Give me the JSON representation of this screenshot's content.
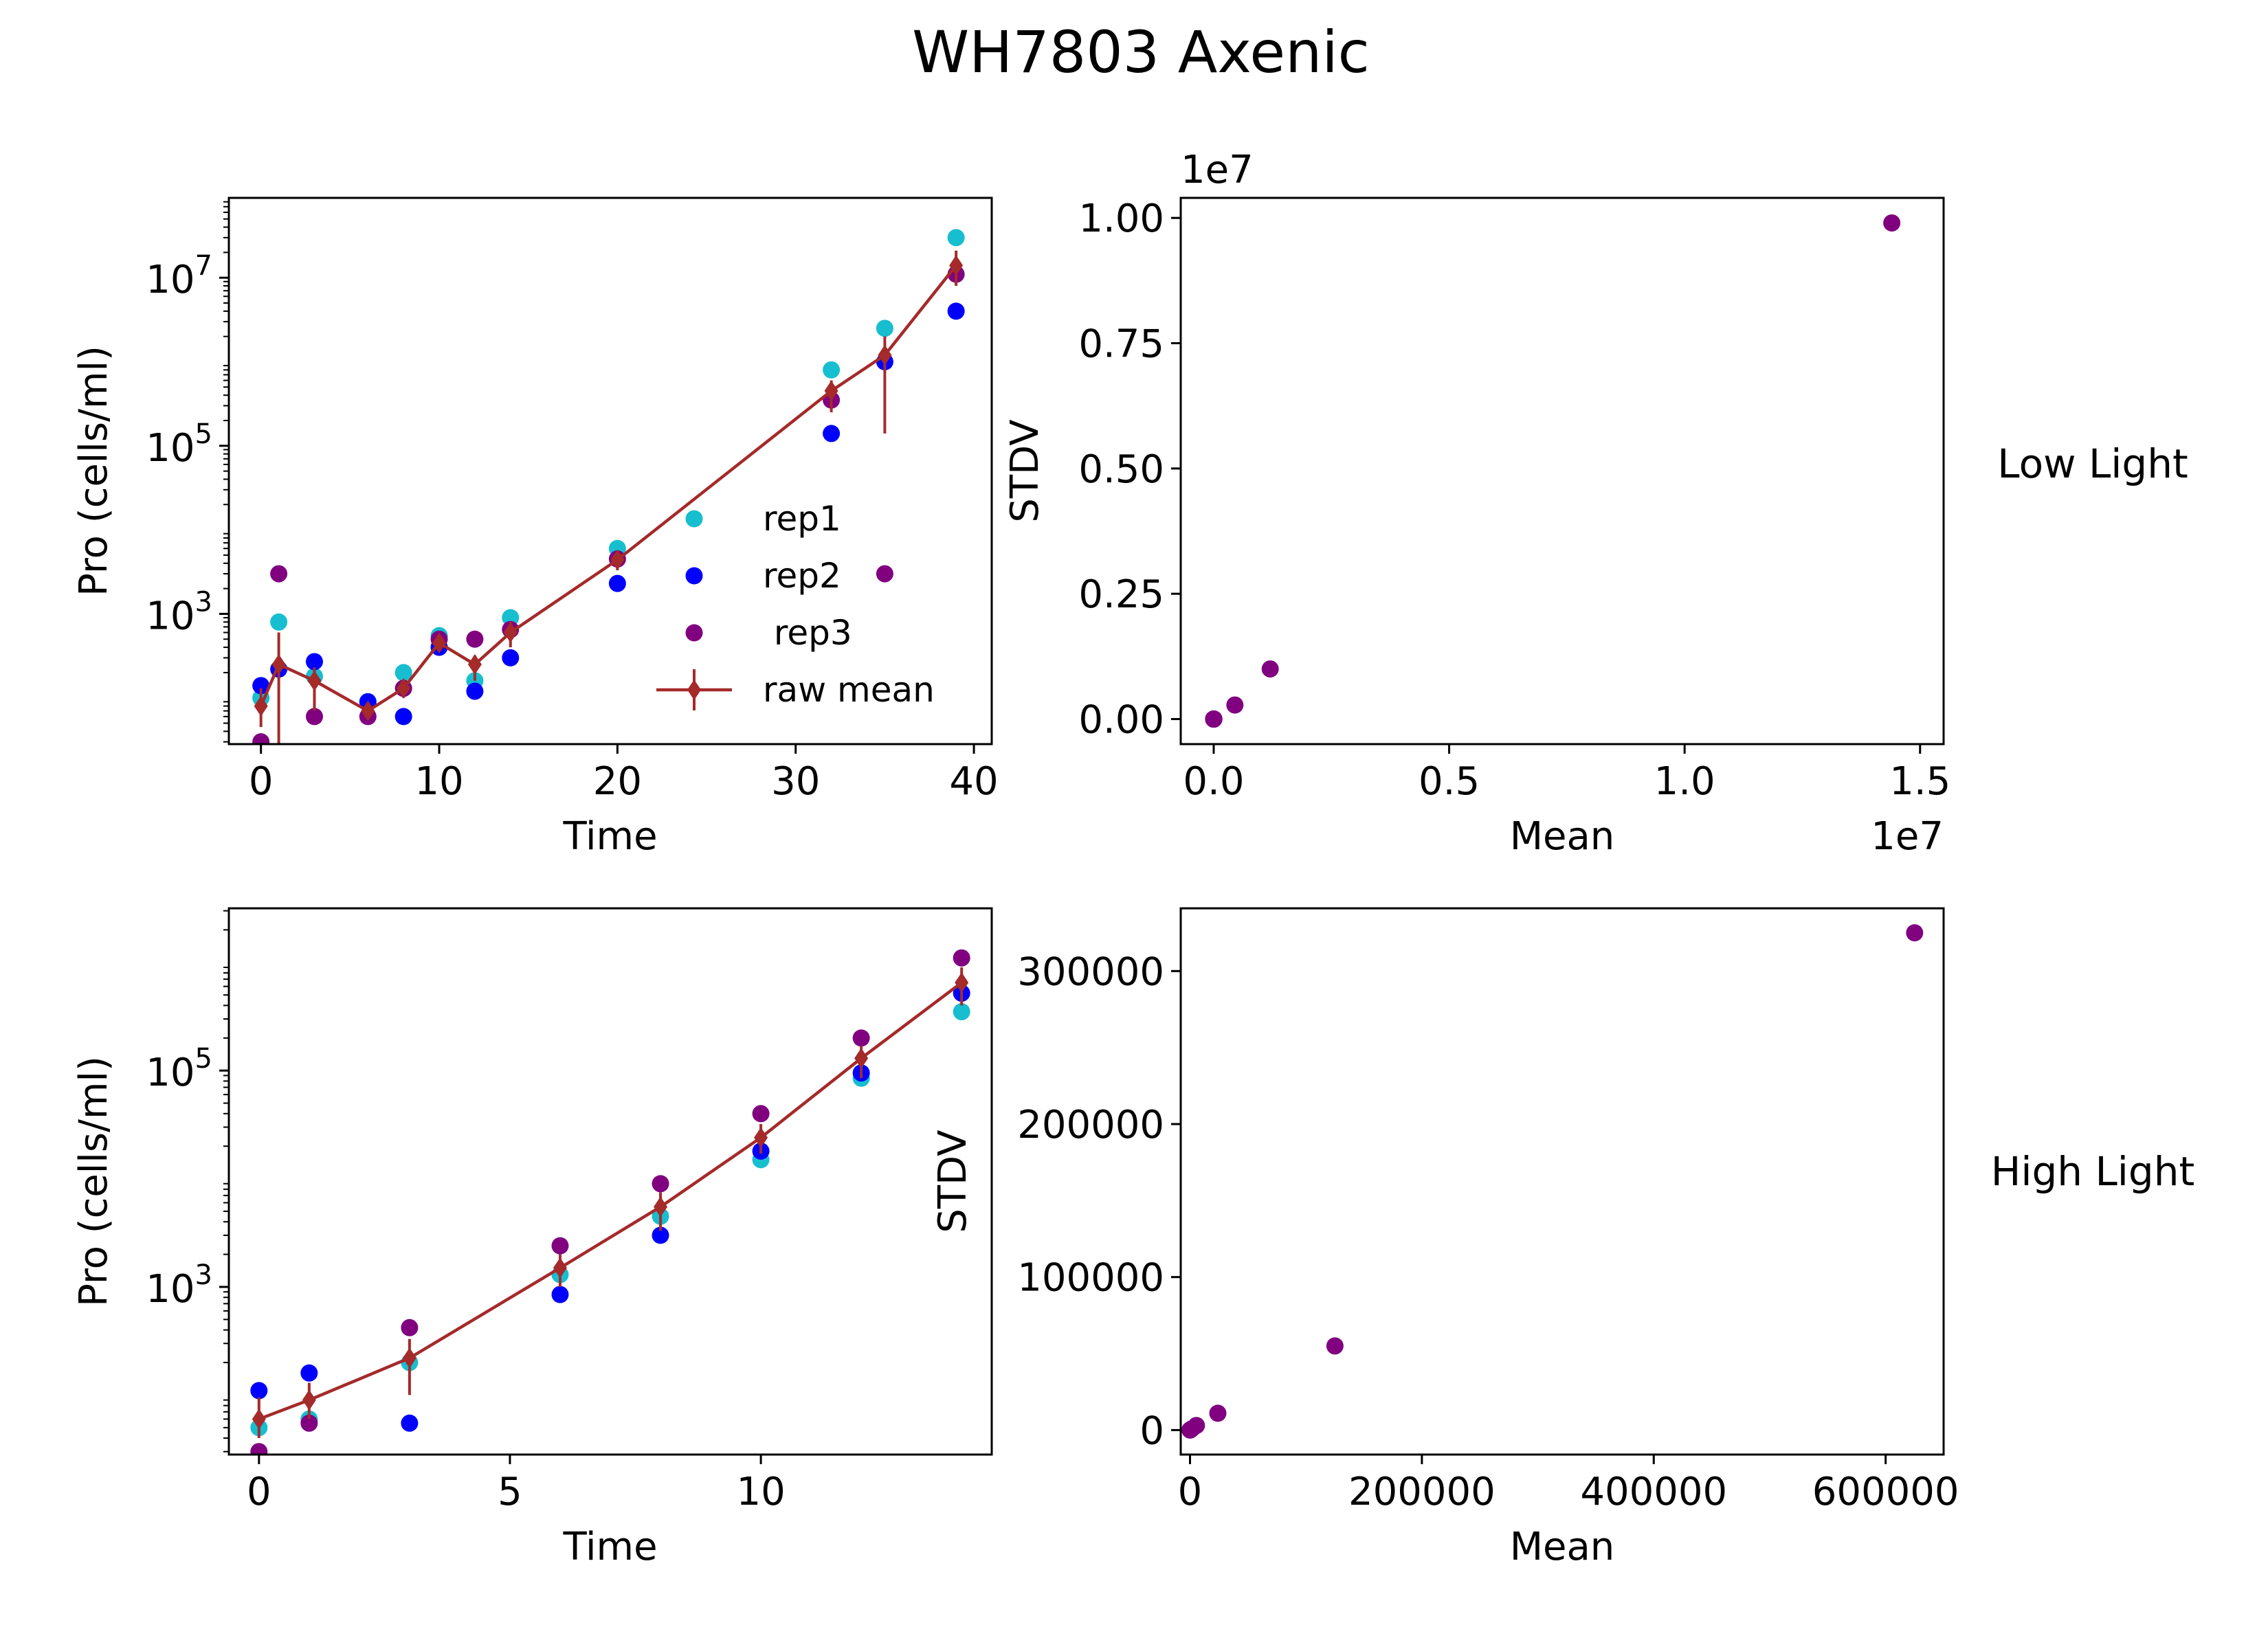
{
  "figure": {
    "title": "WH7803 Axenic",
    "row_labels": [
      "Low Light",
      "High Light"
    ]
  },
  "colors": {
    "rep1": "#17becf",
    "rep2": "#0000ff",
    "rep3": "#800080",
    "mean": "#a52a2a",
    "scatter": "#800080"
  },
  "chart_data": [
    {
      "id": "low-growth",
      "type": "scatter",
      "xlabel": "Time",
      "ylabel": "Pro (cells/ml)",
      "xlim": [
        -1.8,
        41
      ],
      "ylim_log10": [
        1.45,
        7.95
      ],
      "yscale": "log",
      "xticks": [
        0,
        10,
        20,
        30,
        40
      ],
      "yticks_log10": [
        3,
        5,
        7
      ],
      "legend": {
        "placement": "lower-right",
        "entries": [
          "rep1",
          "rep2",
          " rep3",
          "raw mean"
        ]
      },
      "series": [
        {
          "name": "rep1",
          "x": [
            0,
            1,
            3,
            6,
            8,
            10,
            12,
            14,
            20,
            32,
            35,
            39
          ],
          "y": [
            100,
            800,
            180,
            90,
            200,
            550,
            160,
            900,
            6000,
            800000,
            2500000,
            30000000
          ]
        },
        {
          "name": "rep2",
          "x": [
            0,
            1,
            3,
            6,
            8,
            10,
            12,
            14,
            20,
            32,
            35,
            39
          ],
          "y": [
            140,
            220,
            270,
            90,
            60,
            400,
            120,
            300,
            2300,
            140000,
            1000000,
            4000000
          ]
        },
        {
          "name": " rep3",
          "x": [
            0,
            1,
            3,
            6,
            8,
            10,
            12,
            14,
            20,
            32,
            35,
            39
          ],
          "y": [
            30,
            3000,
            60,
            60,
            130,
            500,
            500,
            650,
            4500,
            350000,
            3000,
            11000000
          ]
        },
        {
          "name": "raw mean",
          "x": [
            0,
            1,
            3,
            6,
            8,
            10,
            12,
            14,
            20,
            32,
            35,
            39
          ],
          "y": [
            80,
            250,
            160,
            70,
            130,
            450,
            250,
            600,
            4400,
            450000,
            1200000,
            14000000
          ],
          "err_low": [
            45,
            10,
            70,
            55,
            100,
            380,
            160,
            400,
            3300,
            250000,
            140000,
            8000000
          ],
          "err_high": [
            130,
            600,
            230,
            85,
            160,
            520,
            320,
            800,
            5500,
            600000,
            2000000,
            21000000
          ]
        }
      ]
    },
    {
      "id": "low-stdv",
      "type": "scatter",
      "xlabel": "Mean",
      "ylabel": "STDV",
      "x_offset_text": "1e7",
      "y_offset_text": "1e7",
      "xlim": [
        -0.07,
        1.55
      ],
      "ylim": [
        -0.05,
        1.04
      ],
      "xticks": [
        0.0,
        0.5,
        1.0,
        1.5
      ],
      "xtick_labels": [
        "0.0",
        "0.5",
        "1.0",
        "1.5"
      ],
      "yticks": [
        0.0,
        0.25,
        0.5,
        0.75,
        1.0
      ],
      "ytick_labels": [
        "0.00",
        "0.25",
        "0.50",
        "0.75",
        "1.00"
      ],
      "series": [
        {
          "x": [
            1e-05,
            8e-05,
            2e-05,
            8e-06,
            1e-05,
            5e-05,
            3e-05,
            6e-05,
            0.00044,
            0.045,
            0.12,
            1.44
          ],
          "y": [
            1e-05,
            3e-05,
            1e-05,
            5e-06,
            1e-05,
            1e-05,
            3e-05,
            3e-05,
            2e-05,
            0.028,
            0.1,
            0.99
          ]
        }
      ]
    },
    {
      "id": "high-growth",
      "type": "scatter",
      "xlabel": "Time",
      "ylabel": "Pro (cells/ml)",
      "xlim": [
        -0.6,
        14.6
      ],
      "ylim_log10": [
        1.45,
        6.5
      ],
      "yscale": "log",
      "xticks": [
        0,
        5,
        10
      ],
      "yticks_log10": [
        3,
        5
      ],
      "series": [
        {
          "name": "rep1",
          "x": [
            0,
            1,
            3,
            6,
            8,
            10,
            12,
            14
          ],
          "y": [
            50,
            60,
            200,
            1300,
            4500,
            15000,
            85000,
            350000
          ]
        },
        {
          "name": "rep2",
          "x": [
            0,
            1,
            3,
            6,
            8,
            10,
            12,
            14
          ],
          "y": [
            110,
            160,
            55,
            850,
            3000,
            18000,
            95000,
            520000
          ]
        },
        {
          "name": "rep3",
          "x": [
            0,
            1,
            3,
            6,
            8,
            10,
            12,
            14
          ],
          "y": [
            30,
            55,
            420,
            2400,
            9000,
            40000,
            200000,
            1100000
          ]
        },
        {
          "name": "raw mean",
          "x": [
            0,
            1,
            3,
            6,
            8,
            10,
            12,
            14
          ],
          "y": [
            60,
            90,
            220,
            1500,
            5500,
            24000,
            130000,
            650000
          ],
          "err_low": [
            40,
            60,
            100,
            1000,
            3300,
            17000,
            85000,
            400000
          ],
          "err_high": [
            95,
            130,
            330,
            2000,
            7500,
            32000,
            170000,
            900000
          ]
        }
      ]
    },
    {
      "id": "high-stdv",
      "type": "scatter",
      "xlabel": "Mean",
      "ylabel": "STDV",
      "xlim": [
        -8000,
        650000
      ],
      "ylim": [
        -16000,
        341000
      ],
      "xticks": [
        0,
        200000,
        400000,
        600000
      ],
      "xtick_labels": [
        "0",
        "200000",
        "400000",
        "600000"
      ],
      "yticks": [
        0,
        100000,
        200000,
        300000
      ],
      "ytick_labels": [
        "0",
        "100000",
        "200000",
        "300000"
      ],
      "series": [
        {
          "x": [
            60,
            90,
            220,
            1500,
            5500,
            24000,
            125000,
            625000
          ],
          "y": [
            40,
            50,
            180,
            800,
            3000,
            11000,
            55000,
            325000
          ]
        }
      ]
    }
  ]
}
